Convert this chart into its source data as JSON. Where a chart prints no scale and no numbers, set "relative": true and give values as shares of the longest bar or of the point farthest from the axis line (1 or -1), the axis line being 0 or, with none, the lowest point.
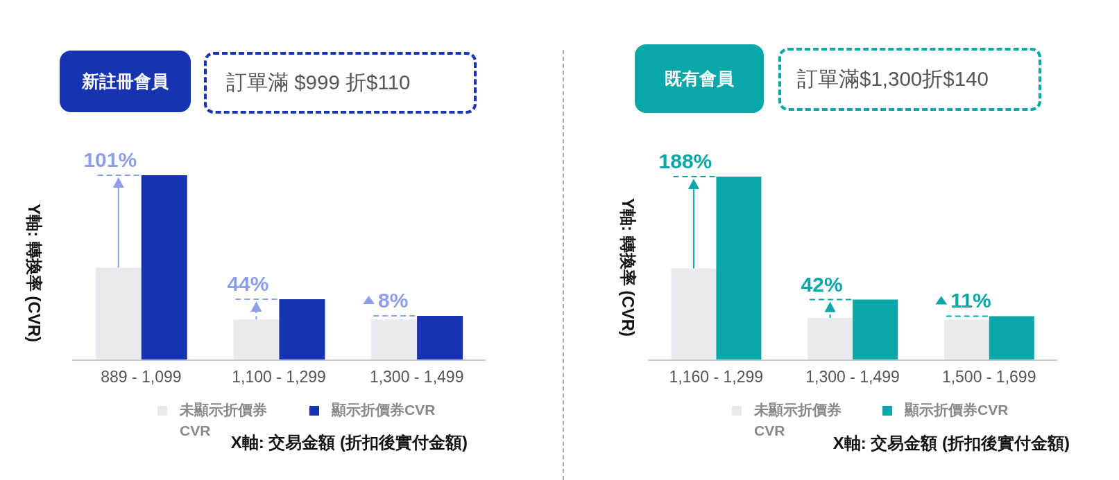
{
  "chart_data": [
    {
      "type": "bar",
      "title": "新註冊會員",
      "subtitle": "訂單滿 $999 折$110",
      "xlabel": "X軸: 交易金額 (折扣後實付金額)",
      "ylabel": "Y軸: 轉換率 (CVR)",
      "relative": true,
      "legend": "bottom",
      "categories": [
        "889 - 1,099",
        "1,100 - 1,299",
        "1,300 - 1,499"
      ],
      "series": [
        {
          "name": "未顯示折價券CVR",
          "color": "#e9eaee",
          "values": [
            0.5,
            0.22,
            0.22
          ]
        },
        {
          "name": "顯示折價券CVR",
          "color": "#1733b0",
          "values": [
            1,
            0.33,
            0.24
          ]
        }
      ],
      "annotations": [
        {
          "text": "101%",
          "x": "889 - 1,099",
          "y": 1
        },
        {
          "text": "44%",
          "x": "1,100 - 1,299",
          "y": 0.33
        },
        {
          "text": "8%",
          "x": "1,300 - 1,499",
          "y": 0.24
        }
      ]
    },
    {
      "type": "bar",
      "title": "既有會員",
      "subtitle": "訂單滿$1,300折$140",
      "xlabel": "X軸: 交易金額 (折扣後實付金額)",
      "ylabel": "Y軸: 轉換率 (CVR)",
      "relative": true,
      "legend": "bottom",
      "categories": [
        "1,160 - 1,299",
        "1,300 - 1,499",
        "1,500 - 1,699"
      ],
      "series": [
        {
          "name": "未顯示折價券CVR",
          "color": "#e9eaee",
          "values": [
            0.5,
            0.23,
            0.22
          ]
        },
        {
          "name": "顯示折價券CVR",
          "color": "#0aa6a8",
          "values": [
            1,
            0.33,
            0.24
          ]
        }
      ],
      "annotations": [
        {
          "text": "188%",
          "x": "1,160 - 1,299",
          "y": 1
        },
        {
          "text": "42%",
          "x": "1,300 - 1,499",
          "y": 0.33
        },
        {
          "text": "11%",
          "x": "1,500 - 1,699",
          "y": 0.24
        }
      ]
    }
  ]
}
